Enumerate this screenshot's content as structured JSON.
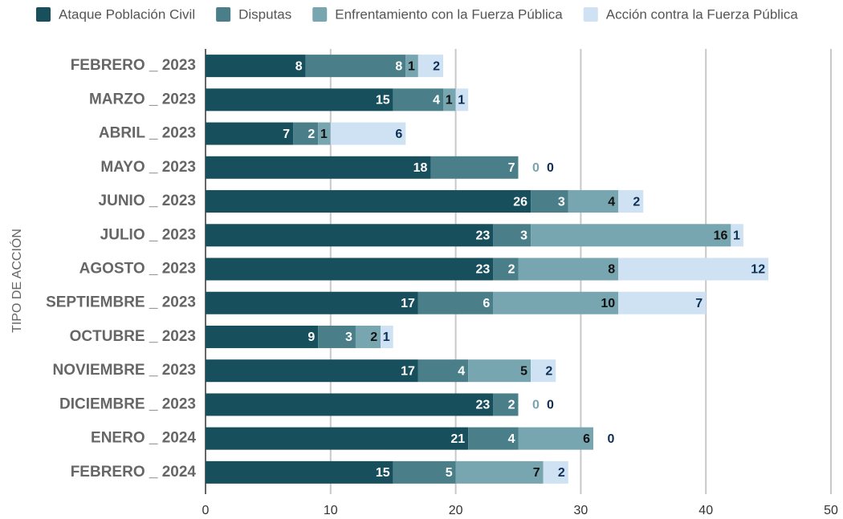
{
  "chart_data": {
    "type": "stacked_bar_horizontal",
    "y_axis_label": "TIPO DE ACCIÓN",
    "categories": [
      "FEBRERO _ 2023",
      "MARZO _ 2023",
      "ABRIL _ 2023",
      "MAYO _ 2023",
      "JUNIO _ 2023",
      "JULIO _ 2023",
      "AGOSTO _ 2023",
      "SEPTIEMBRE _ 2023",
      "OCTUBRE _ 2023",
      "NOVIEMBRE _ 2023",
      "DICIEMBRE _ 2023",
      "ENERO _ 2024",
      "FEBRERO _ 2024"
    ],
    "series": [
      {
        "name": "Ataque Población Civil",
        "color": "#174f5c",
        "values": [
          8,
          15,
          7,
          18,
          26,
          23,
          23,
          17,
          9,
          17,
          23,
          21,
          15
        ]
      },
      {
        "name": "Disputas",
        "color": "#4a7f8a",
        "values": [
          8,
          4,
          2,
          7,
          3,
          3,
          2,
          6,
          3,
          4,
          2,
          4,
          5
        ]
      },
      {
        "name": "Enfrentamiento con la Fuerza Pública",
        "color": "#78a6b0",
        "values": [
          1,
          1,
          1,
          0,
          4,
          16,
          8,
          10,
          2,
          5,
          0,
          6,
          7
        ]
      },
      {
        "name": "Acción contra la Fuerza Pública",
        "color": "#cfe2f3",
        "values": [
          2,
          1,
          6,
          0,
          2,
          1,
          12,
          7,
          1,
          2,
          0,
          0,
          2
        ]
      }
    ],
    "xlim": [
      0,
      50
    ],
    "xticks": [
      0,
      10,
      20,
      30,
      40,
      50
    ],
    "grid": true,
    "legend": "top"
  }
}
